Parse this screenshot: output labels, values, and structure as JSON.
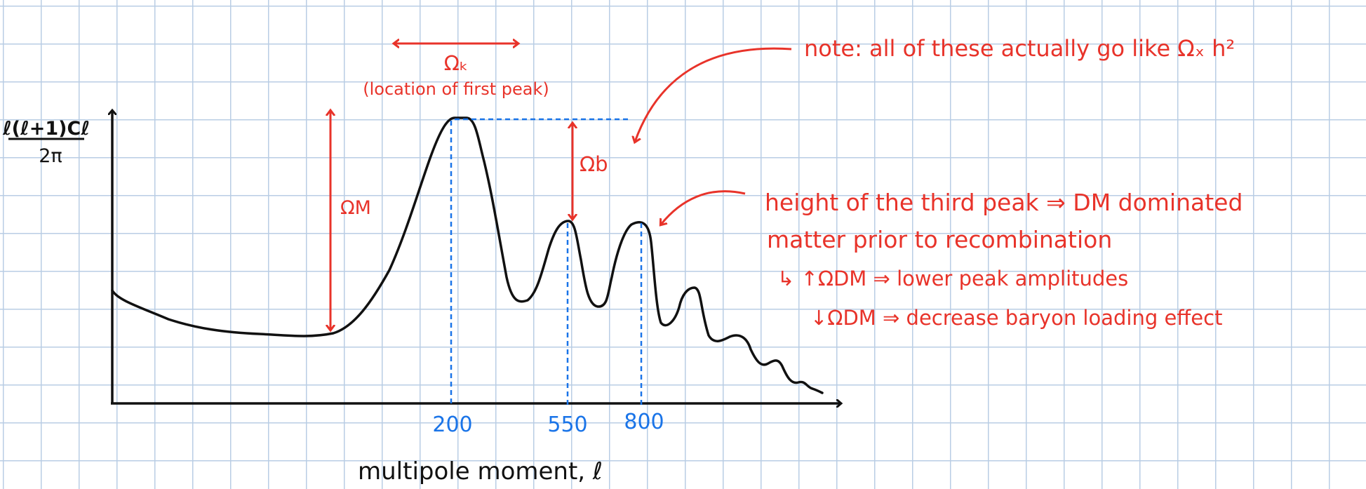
{
  "colors": {
    "ink": "#111111",
    "annotation": "#e8332a",
    "guide": "#1a74e8",
    "grid": "#b9cde4"
  },
  "axis": {
    "y_label_top": "ℓ(ℓ+1)Cℓ",
    "y_label_bottom": "2π",
    "x_label": "multipole moment, ℓ"
  },
  "ticks": [
    "200",
    "550",
    "800"
  ],
  "annotations": {
    "omega_k": "Ωₖ",
    "first_peak": "(location of first peak)",
    "omega_m": "ΩM",
    "omega_b": "Ωb",
    "note": "note: all of these actually go like Ωₓ h²",
    "third_peak_line1": "height of the third peak ⇒ DM dominated",
    "third_peak_line2": "matter prior to recombination",
    "bullet_up": "↳ ↑ΩDM ⇒ lower peak amplitudes",
    "bullet_down": "↓ΩDM ⇒ decrease baryon loading effect"
  }
}
